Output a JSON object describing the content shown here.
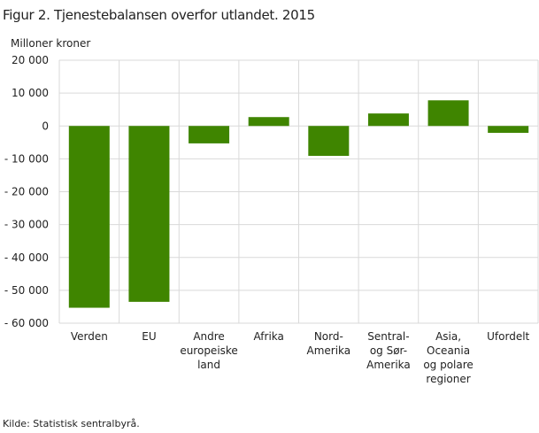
{
  "chart_data": {
    "type": "bar",
    "title": "Figur 2. Tjenestebalansen overfor utlandet. 2015",
    "ylabel": "Milloner  kroner",
    "source": "Kilde: Statistisk sentralbyrå.",
    "categories": [
      [
        "Verden"
      ],
      [
        "EU"
      ],
      [
        "Andre",
        "europeiske",
        "land"
      ],
      [
        "Afrika"
      ],
      [
        "Nord-",
        "Amerika"
      ],
      [
        "Sentral-",
        "og Sør-",
        "Amerika"
      ],
      [
        "Asia,",
        "Oceania",
        "og polare",
        "regioner"
      ],
      [
        "Ufordelt"
      ]
    ],
    "values": [
      -55300,
      -53500,
      -5300,
      2700,
      -9100,
      3800,
      7800,
      -2100
    ],
    "ylim": [
      -60000,
      20000
    ],
    "yticks": [
      20000,
      10000,
      0,
      -10000,
      -20000,
      -30000,
      -40000,
      -50000,
      -60000
    ],
    "ytick_labels": [
      "20 000",
      "10 000",
      "0",
      "- 10 000",
      "- 20 000",
      "- 30 000",
      "- 40 000",
      "- 50 000",
      "- 60 000"
    ],
    "grid": true,
    "legend": "none",
    "bar_color": "#3f8500",
    "grid_color": "#d9d9d9"
  }
}
